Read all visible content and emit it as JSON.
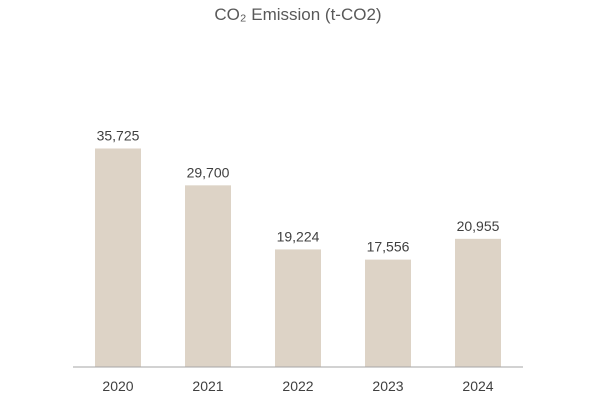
{
  "chart_data": {
    "type": "bar",
    "title": "CO₂ Emission (t-CO2)",
    "categories": [
      "2020",
      "2021",
      "2022",
      "2023",
      "2024"
    ],
    "values": [
      35725,
      29700,
      19224,
      17556,
      20955
    ],
    "data_labels": [
      "35,725",
      "29,700",
      "19,224",
      "17,556",
      "20,955"
    ],
    "xlabel": "",
    "ylabel": "",
    "ylim": [
      0,
      60000
    ],
    "grid": false,
    "legend": "none",
    "colors": {
      "bar": "#ddd3c6",
      "axis": "#a6a6a6",
      "text": "#404040",
      "title": "#595959"
    }
  }
}
